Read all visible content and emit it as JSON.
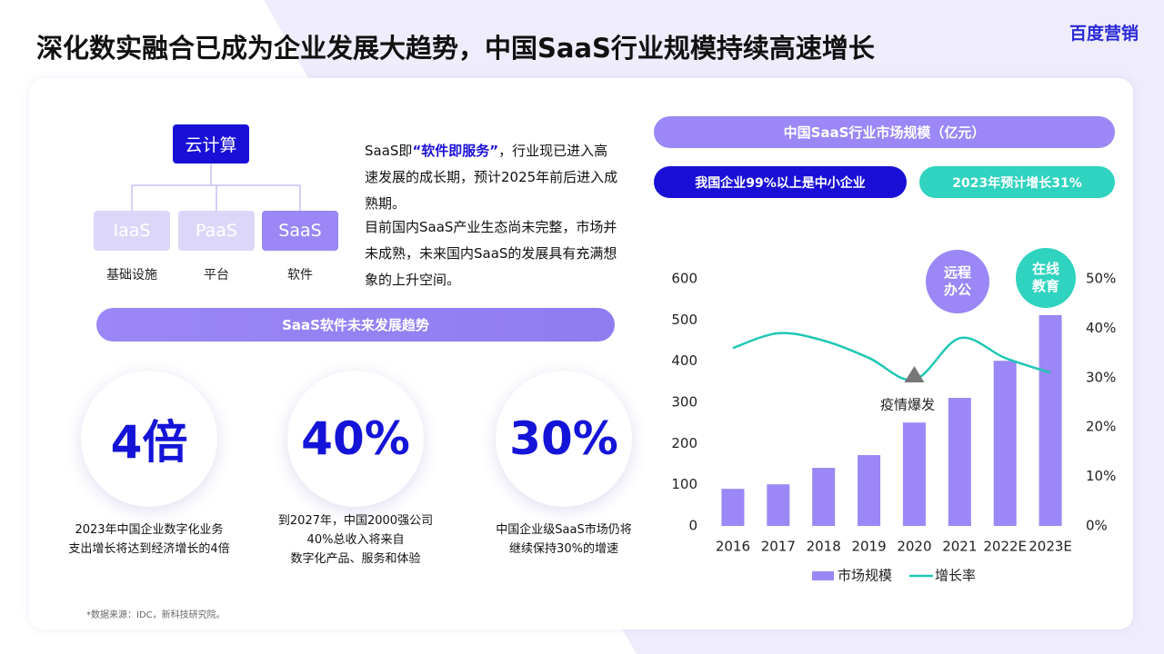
{
  "header": {
    "title": "深化数实融合已成为企业发展大趋势，中国SaaS行业规模持续高速增长",
    "logo": "百度营销"
  },
  "cloud": {
    "root": "云计算",
    "nodes": [
      {
        "label": "IaaS",
        "caption": "基础设施"
      },
      {
        "label": "PaaS",
        "caption": "平台"
      },
      {
        "label": "SaaS",
        "caption": "软件"
      }
    ]
  },
  "intro": {
    "lead": "SaaS即",
    "highlight": "“软件即服务”",
    "rest": "，行业现已进入高速发展的成长期，预计2025年前后进入成熟期。",
    "paragraph2": "目前国内SaaS产业生态尚未完整，市场并未成熟，未来国内SaaS的发展具有充满想象的上升空间。"
  },
  "trend": {
    "title": "SaaS软件未来发展趋势",
    "stats": [
      {
        "value": "4倍",
        "desc": [
          "2023年中国企业数字化业务",
          "支出增长将达到经济增长的4倍"
        ]
      },
      {
        "value": "40%",
        "desc": [
          "到2027年，中国2000强公司",
          "40%总收入将来自",
          "数字化产品、服务和体验"
        ]
      },
      {
        "value": "30%",
        "desc": [
          "中国企业级SaaS市场仍将",
          "继续保持30%的增速"
        ]
      }
    ]
  },
  "source": "*数据来源：IDC，新科技研究院。",
  "chart_data": {
    "type": "combo",
    "title": "中国SaaS行业市场规模（亿元）",
    "badges": [
      "我国企业99%以上是中小企业",
      "2023年预计增长31%"
    ],
    "annotations": [
      "远程办公",
      "在线教育",
      "疫情爆发"
    ],
    "categories": [
      "2016",
      "2017",
      "2018",
      "2019",
      "2020",
      "2021",
      "2022E",
      "2023E"
    ],
    "series": [
      {
        "name": "市场规模",
        "color": "#9b87f5",
        "values": [
          90,
          101,
          141,
          172,
          251,
          311,
          401,
          512
        ]
      },
      {
        "name": "增长率",
        "color": "#1fc7b4",
        "axis": "y2",
        "values": [
          36,
          39,
          37.5,
          34,
          29.6,
          38,
          34,
          31
        ]
      }
    ],
    "ylim": [
      0,
      600
    ],
    "yticks": [
      0,
      100,
      200,
      300,
      400,
      500,
      600
    ],
    "y2lim": [
      0,
      50
    ],
    "y2ticks": [
      {
        "value": 0,
        "label": "0%"
      },
      {
        "value": 10,
        "label": "10%"
      },
      {
        "value": 20,
        "label": "20%"
      },
      {
        "value": 30,
        "label": "30%"
      },
      {
        "value": 40,
        "label": "40%"
      },
      {
        "value": 50,
        "label": "50%"
      }
    ]
  }
}
